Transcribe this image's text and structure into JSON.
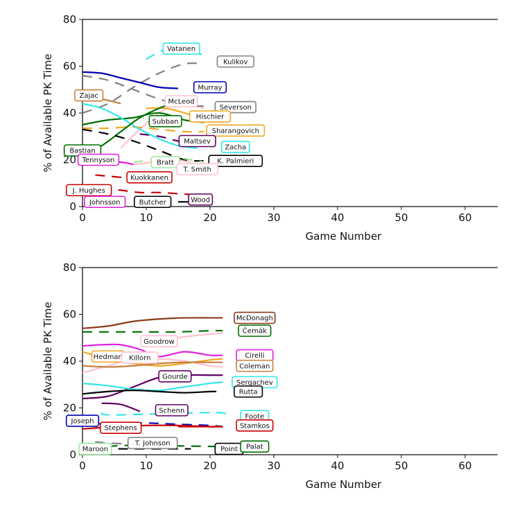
{
  "chart_data": [
    {
      "type": "line",
      "title": "",
      "xlabel": "Game Number",
      "ylabel": "% of Available PK Time",
      "xlim": [
        -1,
        65
      ],
      "ylim": [
        0,
        80
      ],
      "xticks": [
        0,
        10,
        20,
        30,
        40,
        50,
        60
      ],
      "yticks": [
        0,
        20,
        40,
        60,
        80
      ],
      "grid": false,
      "legend": "inline-labels",
      "series": [
        {
          "name": "Vatanen",
          "color": "#33e6e6",
          "style": "dashed",
          "x": [
            10,
            12,
            14,
            16,
            18,
            19
          ],
          "y": [
            63,
            66,
            68,
            68,
            66,
            64
          ],
          "label_pos": [
            15.5,
            67.5
          ]
        },
        {
          "name": "Kulikov",
          "color": "#808080",
          "style": "dashed",
          "x": [
            0,
            4,
            8,
            12,
            16,
            19
          ],
          "y": [
            40,
            44,
            51,
            57,
            61,
            61
          ],
          "label_pos": [
            24,
            62
          ]
        },
        {
          "name": "Murray",
          "color": "#0000b3",
          "style": "solid",
          "x": [
            0,
            3,
            6,
            9,
            12,
            15
          ],
          "y": [
            57.5,
            57,
            55,
            53,
            51,
            50.5
          ],
          "label_pos": [
            20,
            51
          ]
        },
        {
          "name": "Zajac",
          "color": "#c68040",
          "style": "solid",
          "x": [
            0,
            3,
            6
          ],
          "y": [
            47,
            46,
            44
          ],
          "label_pos": [
            1,
            47.5
          ]
        },
        {
          "name": "McLeod",
          "color": "#ffc0cb",
          "style": "solid",
          "x": [
            6,
            9,
            12,
            15,
            18,
            19
          ],
          "y": [
            25,
            33,
            40,
            44,
            43,
            42
          ],
          "label_pos": [
            15.5,
            45
          ]
        },
        {
          "name": "Severson",
          "color": "#808080",
          "style": "dashed",
          "x": [
            0,
            4,
            8,
            12,
            16,
            19
          ],
          "y": [
            56,
            54,
            50,
            46,
            43,
            43
          ],
          "label_pos": [
            24,
            42.5
          ]
        },
        {
          "name": "Subban",
          "color": "#007000",
          "style": "solid",
          "x": [
            0,
            4,
            8,
            12,
            16,
            19
          ],
          "y": [
            35,
            37,
            38,
            40,
            37,
            36
          ],
          "label_pos": [
            13,
            36.5
          ]
        },
        {
          "name": "Hischier",
          "color": "#f0a820",
          "style": "solid",
          "x": [
            10,
            13,
            16,
            19
          ],
          "y": [
            42,
            42,
            40,
            37
          ],
          "label_pos": [
            20,
            38.5
          ]
        },
        {
          "name": "Sharangovich",
          "color": "#f0a820",
          "style": "dashed",
          "x": [
            0,
            4,
            8,
            12,
            16,
            19
          ],
          "y": [
            33.5,
            33.5,
            34,
            33,
            32,
            32
          ],
          "label_pos": [
            24,
            32.5
          ]
        },
        {
          "name": "Maltsev",
          "color": "#600060",
          "style": "dashed",
          "x": [
            9,
            12,
            15,
            17
          ],
          "y": [
            31,
            30,
            28,
            27
          ],
          "label_pos": [
            18,
            28
          ]
        },
        {
          "name": "Zacha",
          "color": "#33e6e6",
          "style": "solid",
          "x": [
            0,
            3,
            6,
            9,
            12,
            15,
            18
          ],
          "y": [
            44,
            42,
            38,
            33,
            29,
            26,
            25
          ],
          "label_pos": [
            24,
            25.5
          ]
        },
        {
          "name": "Bastian",
          "color": "#007000",
          "style": "solid",
          "x": [
            0,
            3,
            6,
            9,
            12,
            14
          ],
          "y": [
            22,
            26,
            32,
            38,
            42,
            44
          ],
          "label_pos": [
            0,
            24
          ]
        },
        {
          "name": "K. Palmieri",
          "color": "#000000",
          "style": "dashed",
          "x": [
            0,
            4,
            8,
            12,
            16,
            19
          ],
          "y": [
            33,
            31,
            28,
            24,
            20,
            19.5
          ],
          "label_pos": [
            24,
            19.5
          ]
        },
        {
          "name": "Tennyson",
          "color": "#e020e0",
          "style": "solid",
          "x": [
            0,
            3,
            6,
            8
          ],
          "y": [
            20,
            19.5,
            19,
            18
          ],
          "label_pos": [
            2.5,
            20
          ]
        },
        {
          "name": "Bratt",
          "color": "#a0e8a0",
          "style": "dashed",
          "x": [
            8,
            11,
            14,
            17,
            19
          ],
          "y": [
            19,
            20,
            21,
            20,
            19
          ],
          "label_pos": [
            13,
            19
          ]
        },
        {
          "name": "T. Smith",
          "color": "#ffc0cb",
          "style": "solid",
          "x": [
            8,
            11,
            14,
            17
          ],
          "y": [
            18,
            19,
            20,
            19
          ],
          "label_pos": [
            18,
            16
          ]
        },
        {
          "name": "Kuokkanen",
          "color": "#cc0000",
          "style": "dashed",
          "x": [
            2,
            4,
            6,
            8
          ],
          "y": [
            13.5,
            13,
            12.5,
            12
          ],
          "label_pos": [
            10.5,
            12.5
          ]
        },
        {
          "name": "J. Hughes",
          "color": "#cc0000",
          "style": "dashed",
          "x": [
            3,
            6,
            9,
            12,
            15,
            18
          ],
          "y": [
            8,
            7,
            6,
            6,
            5.5,
            5
          ],
          "label_pos": [
            1,
            7
          ]
        },
        {
          "name": "Johnsson",
          "color": "#e020e0",
          "style": "solid",
          "x": [],
          "y": [],
          "label_pos": [
            3.5,
            2
          ]
        },
        {
          "name": "Butcher",
          "color": "#000000",
          "style": "solid",
          "x": [
            15,
            16.5
          ],
          "y": [
            2,
            2
          ],
          "label_pos": [
            11,
            2
          ]
        },
        {
          "name": "Wood",
          "color": "#600060",
          "style": "solid",
          "x": [
            16.5,
            18
          ],
          "y": [
            2,
            2.5
          ],
          "label_pos": [
            18.5,
            3
          ]
        }
      ]
    },
    {
      "type": "line",
      "title": "",
      "xlabel": "Game Number",
      "ylabel": "% of Available PK Time",
      "xlim": [
        -1,
        65
      ],
      "ylim": [
        0,
        80
      ],
      "xticks": [
        0,
        10,
        20,
        30,
        40,
        50,
        60
      ],
      "yticks": [
        0,
        20,
        40,
        60,
        80
      ],
      "grid": false,
      "legend": "inline-labels",
      "series": [
        {
          "name": "McDonagh",
          "color": "#8b3a1a",
          "style": "solid",
          "x": [
            0,
            4,
            8,
            12,
            16,
            20,
            22
          ],
          "y": [
            54,
            55,
            57,
            58,
            58.5,
            58.5,
            58.5
          ],
          "label_pos": [
            27,
            58.5
          ]
        },
        {
          "name": "Černák",
          "color": "#007000",
          "style": "dashed",
          "x": [
            0,
            5,
            10,
            15,
            20,
            22
          ],
          "y": [
            52.5,
            52.5,
            52.5,
            52.5,
            53,
            53
          ],
          "label_pos": [
            27,
            53
          ]
        },
        {
          "name": "Goodrow",
          "color": "#ffc0cb",
          "style": "solid",
          "x": [
            12,
            15,
            18,
            22
          ],
          "y": [
            48,
            50,
            51,
            52
          ],
          "label_pos": [
            12,
            48.5
          ]
        },
        {
          "name": "Cirelli",
          "color": "#e020e0",
          "style": "solid",
          "x": [
            0,
            3,
            6,
            9,
            12,
            16,
            20,
            22
          ],
          "y": [
            46.5,
            47,
            47,
            45,
            42,
            44,
            42.5,
            42.5
          ],
          "label_pos": [
            27,
            42.5
          ]
        },
        {
          "name": "Hedman",
          "color": "#f0a820",
          "style": "solid",
          "x": [
            0,
            4,
            8,
            12,
            16,
            20,
            22
          ],
          "y": [
            44,
            41,
            39,
            38,
            39,
            40.5,
            41
          ],
          "label_pos": [
            4,
            42
          ]
        },
        {
          "name": "Killorn",
          "color": "#ffc0cb",
          "style": "solid",
          "x": [
            0,
            4,
            8,
            12,
            16,
            20,
            22
          ],
          "y": [
            35,
            38,
            41,
            41,
            40,
            38,
            37.5
          ],
          "label_pos": [
            9,
            41.5
          ]
        },
        {
          "name": "Coleman",
          "color": "#c68040",
          "style": "solid",
          "x": [
            0,
            4,
            8,
            12,
            16,
            20,
            22
          ],
          "y": [
            38,
            37.5,
            38,
            39,
            39.5,
            39.5,
            39.5
          ],
          "label_pos": [
            27,
            38
          ]
        },
        {
          "name": "Gourde",
          "color": "#600060",
          "style": "solid",
          "x": [
            0,
            4,
            8,
            12,
            16,
            20,
            22
          ],
          "y": [
            24,
            25,
            29,
            33,
            34,
            34,
            34
          ],
          "label_pos": [
            14.5,
            33.5
          ]
        },
        {
          "name": "Sergachev",
          "color": "#33e6e6",
          "style": "solid",
          "x": [
            0,
            4,
            8,
            12,
            16,
            20,
            22
          ],
          "y": [
            30.5,
            29.5,
            28,
            27.5,
            29,
            30.5,
            31
          ],
          "label_pos": [
            27,
            31
          ]
        },
        {
          "name": "Rutta",
          "color": "#000000",
          "style": "solid",
          "x": [
            0,
            4,
            8,
            12,
            16,
            20,
            21
          ],
          "y": [
            26,
            27,
            27.5,
            27,
            26.5,
            27,
            27
          ],
          "label_pos": [
            26,
            27
          ]
        },
        {
          "name": "Schenn",
          "color": "#600060",
          "style": "solid",
          "x": [
            3,
            6,
            9
          ],
          "y": [
            22,
            21.5,
            18.5
          ],
          "label_pos": [
            14,
            19
          ]
        },
        {
          "name": "Foote",
          "color": "#33e6e6",
          "style": "dashed",
          "x": [
            3,
            5,
            21,
            22
          ],
          "y": [
            18,
            17,
            18,
            16
          ],
          "label_pos": [
            27,
            16.5
          ]
        },
        {
          "name": "Joseph",
          "color": "#0000b3",
          "style": "dashed",
          "x": [
            0,
            4,
            10,
            15,
            20,
            22
          ],
          "y": [
            14,
            13,
            13.5,
            13,
            12.5,
            12
          ],
          "label_pos": [
            0,
            14.5
          ]
        },
        {
          "name": "Stephens",
          "color": "#cc0000",
          "style": "solid",
          "x": [
            0,
            5,
            10,
            15,
            20,
            22
          ],
          "y": [
            11,
            12,
            12.5,
            12.5,
            12,
            12
          ],
          "label_pos": [
            6,
            11.5
          ]
        },
        {
          "name": "Stamkos",
          "color": "#cc0000",
          "style": "solid",
          "x": [
            15,
            18,
            22
          ],
          "y": [
            12,
            12,
            12
          ],
          "label_pos": [
            27,
            12.5
          ]
        },
        {
          "name": "T. Johnson",
          "color": "#808080",
          "style": "dashed",
          "x": [
            2,
            4,
            8
          ],
          "y": [
            5.5,
            5,
            4.5
          ],
          "label_pos": [
            11,
            5
          ]
        },
        {
          "name": "Maroon",
          "color": "#a0e8a0",
          "style": "solid",
          "x": [],
          "y": [],
          "label_pos": [
            2,
            2.5
          ]
        },
        {
          "name": "Point",
          "color": "#000000",
          "style": "dashed",
          "x": [
            3,
            7,
            15,
            17
          ],
          "y": [
            2.5,
            2.5,
            2.5,
            2.5
          ],
          "label_pos": [
            23,
            2.5
          ]
        },
        {
          "name": "Palat",
          "color": "#007000",
          "style": "dashed",
          "x": [
            4,
            8,
            21,
            22
          ],
          "y": [
            3.5,
            4,
            3.5,
            3.5
          ],
          "label_pos": [
            27,
            3.5
          ]
        }
      ]
    }
  ]
}
